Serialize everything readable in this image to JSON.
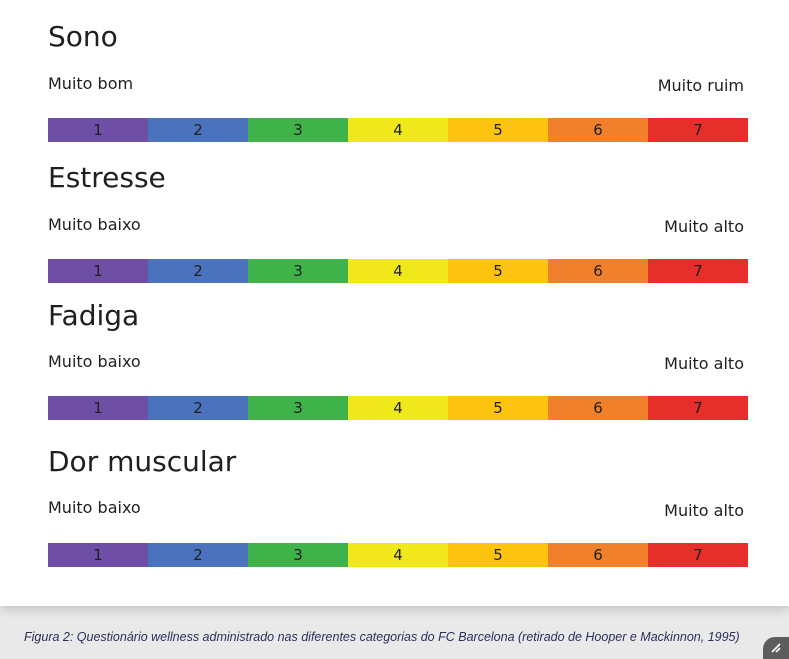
{
  "sections": [
    {
      "title": "Sono",
      "low_label": "Muito bom",
      "high_label": "Muito ruim"
    },
    {
      "title": "Estresse",
      "low_label": "Muito baixo",
      "high_label": "Muito alto"
    },
    {
      "title": "Fadiga",
      "low_label": "Muito baixo",
      "high_label": "Muito alto"
    },
    {
      "title": "Dor muscular",
      "low_label": "Muito baixo",
      "high_label": "Muito alto"
    }
  ],
  "scale": {
    "values": [
      "1",
      "2",
      "3",
      "4",
      "5",
      "6",
      "7"
    ],
    "colors": [
      "#6f4ea6",
      "#4a72bd",
      "#3fb34a",
      "#f0e81a",
      "#fdc40f",
      "#f0802b",
      "#e62e2a"
    ]
  },
  "caption": "Figura 2: Questionário wellness administrado nas diferentes categorias do FC Barcelona (retirado de Hooper e Mackinnon, 1995)",
  "corner_icon": "resize-icon"
}
